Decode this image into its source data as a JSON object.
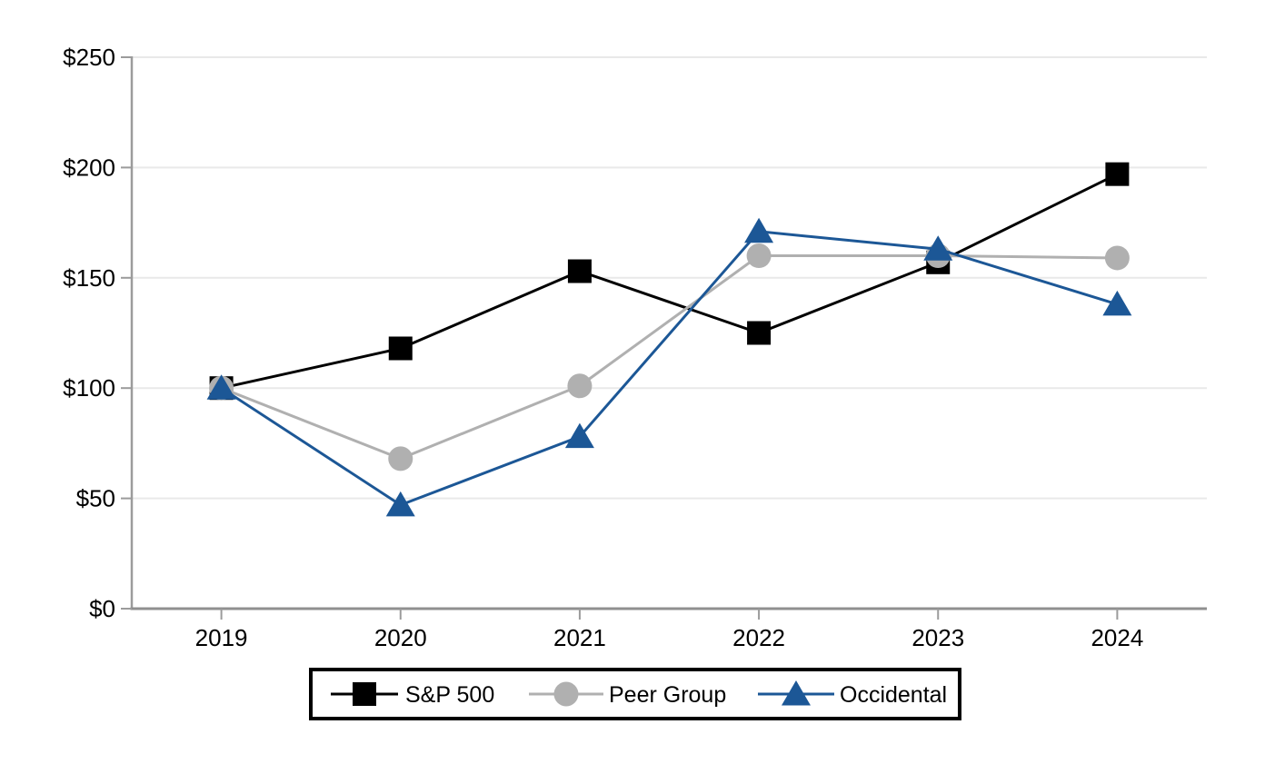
{
  "page": {
    "background": "#ffffff"
  },
  "chart_data": {
    "type": "line",
    "title": "",
    "xlabel": "",
    "ylabel": "",
    "categories": [
      "2019",
      "2020",
      "2021",
      "2022",
      "2023",
      "2024"
    ],
    "y_tick_labels": [
      "$0",
      "$50",
      "$100",
      "$150",
      "$200",
      "$250"
    ],
    "y_tick_values": [
      0,
      50,
      100,
      150,
      200,
      250
    ],
    "ylim": [
      0,
      250
    ],
    "grid": "horizontal",
    "legend_position": "bottom",
    "series": [
      {
        "name": "S&P 500",
        "marker": "square",
        "color": "#000000",
        "values": [
          100,
          118,
          153,
          125,
          157,
          197
        ]
      },
      {
        "name": "Peer Group",
        "marker": "circle",
        "color": "#b0b0b0",
        "values": [
          100,
          68,
          101,
          160,
          160,
          159
        ]
      },
      {
        "name": "Occidental",
        "marker": "triangle",
        "color": "#1c5796",
        "values": [
          100,
          47,
          78,
          171,
          163,
          138
        ]
      }
    ],
    "colors": {
      "gridline": "#e9e9e9",
      "axis": "#9b9b9b",
      "bottom_axis": "#8f8f8f",
      "legend_border": "#000000",
      "text": "#000000"
    }
  }
}
